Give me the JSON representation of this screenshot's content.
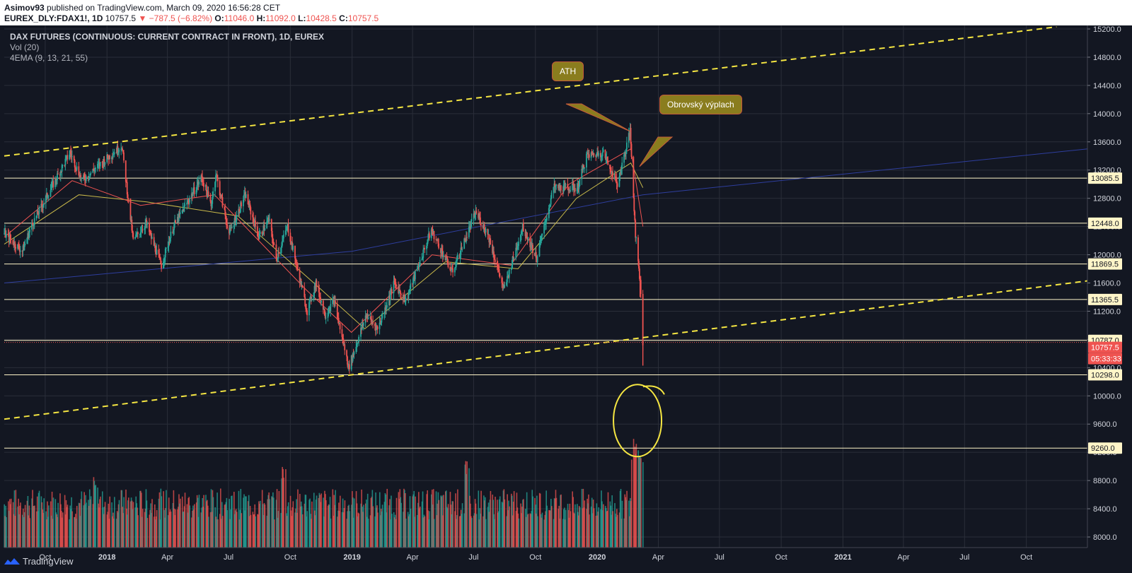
{
  "header": {
    "publisher": "Asimov93",
    "published_text": "published on TradingView.com, March 09, 2020 16:56:28 CET",
    "symbol": "EUREX_DLY:FDAX1!, 1D",
    "last": "10757.5",
    "change": "▼ −787.5 (−6.82%)",
    "o_label": "O:",
    "o_value": "11046.0",
    "h_label": "H:",
    "h_value": "11092.0",
    "l_label": "L:",
    "l_value": "10428.5",
    "c_label": "C:",
    "c_value": "10757.5"
  },
  "legend": {
    "title": "DAX FUTURES (CONTINUOUS: CURRENT CONTRACT IN FRONT), 1D, EUREX",
    "vol": "Vol (20)",
    "ema": "4EMA (9, 13, 21, 55)"
  },
  "annotations": {
    "ath": "ATH",
    "flush": "Obrovský výplach"
  },
  "footer": {
    "brand": "TradingView"
  },
  "colors": {
    "background": "#131722",
    "grid": "#2a2e39",
    "up": "#26a69a",
    "down": "#ef5350",
    "level_line": "#fff5c8",
    "trendline": "#f5e642",
    "callout_bg": "#8a7d1e",
    "callout_border": "#c55a3a",
    "ema9": "#ef5350",
    "ema21": "#c9b94a",
    "ema55": "#2e3e9e"
  },
  "chart_data": {
    "type": "candlestick",
    "ylim": [
      7850,
      15250
    ],
    "x_range": [
      "2017-08-01",
      "2021-12-31"
    ],
    "x_ticks": [
      {
        "label": "Oct",
        "date": "2017-10-01",
        "bold": false
      },
      {
        "label": "2018",
        "date": "2018-01-01",
        "bold": true
      },
      {
        "label": "Apr",
        "date": "2018-04-01",
        "bold": false
      },
      {
        "label": "Jul",
        "date": "2018-07-01",
        "bold": false
      },
      {
        "label": "Oct",
        "date": "2018-10-01",
        "bold": false
      },
      {
        "label": "2019",
        "date": "2019-01-01",
        "bold": true
      },
      {
        "label": "Apr",
        "date": "2019-04-01",
        "bold": false
      },
      {
        "label": "Jul",
        "date": "2019-07-01",
        "bold": false
      },
      {
        "label": "Oct",
        "date": "2019-10-01",
        "bold": false
      },
      {
        "label": "2020",
        "date": "2020-01-01",
        "bold": true
      },
      {
        "label": "Apr",
        "date": "2020-04-01",
        "bold": false
      },
      {
        "label": "Jul",
        "date": "2020-07-01",
        "bold": false
      },
      {
        "label": "Oct",
        "date": "2020-10-01",
        "bold": false
      },
      {
        "label": "2021",
        "date": "2021-01-01",
        "bold": true
      },
      {
        "label": "Apr",
        "date": "2021-04-01",
        "bold": false
      },
      {
        "label": "Jul",
        "date": "2021-07-01",
        "bold": false
      },
      {
        "label": "Oct",
        "date": "2021-10-01",
        "bold": false
      }
    ],
    "y_ticks": [
      "15200.0",
      "14800.0",
      "14400.0",
      "14000.0",
      "13600.0",
      "13200.0",
      "12800.0",
      "12400.0",
      "12000.0",
      "11600.0",
      "11200.0",
      "10800.0",
      "10400.0",
      "10000.0",
      "9600.0",
      "9200.0",
      "8800.0",
      "8400.0",
      "8000.0"
    ],
    "levels": [
      {
        "value": 13085.5,
        "label": "13085.5"
      },
      {
        "value": 12448.0,
        "label": "12448.0"
      },
      {
        "value": 11869.5,
        "label": "11869.5"
      },
      {
        "value": 11365.5,
        "label": "11365.5"
      },
      {
        "value": 10787.0,
        "label": "10787.0"
      },
      {
        "value": 10298.0,
        "label": "10298.0"
      },
      {
        "value": 9260.0,
        "label": "9260.0"
      }
    ],
    "last_price": {
      "value": 10757.5,
      "label": "10757.5",
      "countdown": "05:33:33"
    },
    "trendlines": [
      {
        "from": {
          "date": "2017-08-01",
          "value": 13400
        },
        "to": {
          "date": "2021-11-15",
          "value": 15230
        }
      },
      {
        "from": {
          "date": "2017-08-01",
          "value": 9670
        },
        "to": {
          "date": "2021-12-31",
          "value": 11630
        }
      }
    ],
    "ohlc_path": [
      [
        "2017-08-01",
        12300
      ],
      [
        "2017-08-28",
        12050
      ],
      [
        "2017-09-10",
        12400
      ],
      [
        "2017-10-10",
        12950
      ],
      [
        "2017-11-07",
        13450
      ],
      [
        "2017-11-25",
        13050
      ],
      [
        "2017-12-12",
        13200
      ],
      [
        "2018-01-23",
        13550
      ],
      [
        "2018-02-09",
        12200
      ],
      [
        "2018-02-28",
        12450
      ],
      [
        "2018-03-23",
        11850
      ],
      [
        "2018-04-10",
        12400
      ],
      [
        "2018-05-22",
        13100
      ],
      [
        "2018-06-05",
        12700
      ],
      [
        "2018-06-12",
        13150
      ],
      [
        "2018-07-02",
        12300
      ],
      [
        "2018-07-26",
        12850
      ],
      [
        "2018-08-15",
        12250
      ],
      [
        "2018-08-30",
        12500
      ],
      [
        "2018-09-10",
        11950
      ],
      [
        "2018-09-27",
        12400
      ],
      [
        "2018-10-26",
        11200
      ],
      [
        "2018-11-08",
        11600
      ],
      [
        "2018-11-22",
        11150
      ],
      [
        "2018-12-05",
        11350
      ],
      [
        "2018-12-27",
        10400
      ],
      [
        "2019-01-22",
        11150
      ],
      [
        "2019-02-08",
        10950
      ],
      [
        "2019-03-05",
        11600
      ],
      [
        "2019-03-22",
        11350
      ],
      [
        "2019-04-29",
        12350
      ],
      [
        "2019-05-30",
        11750
      ],
      [
        "2019-07-04",
        12600
      ],
      [
        "2019-07-22",
        12300
      ],
      [
        "2019-08-15",
        11500
      ],
      [
        "2019-09-12",
        12400
      ],
      [
        "2019-10-03",
        11950
      ],
      [
        "2019-10-28",
        12950
      ],
      [
        "2019-12-03",
        12950
      ],
      [
        "2019-12-16",
        13400
      ],
      [
        "2020-01-10",
        13450
      ],
      [
        "2020-01-31",
        13000
      ],
      [
        "2020-02-19",
        13750
      ],
      [
        "2020-02-27",
        12300
      ],
      [
        "2020-03-02",
        11900
      ],
      [
        "2020-03-06",
        11500
      ],
      [
        "2020-03-09",
        10757.5
      ]
    ],
    "ema_fast": [
      [
        "2017-08-01",
        12250
      ],
      [
        "2017-11-10",
        13050
      ],
      [
        "2018-02-20",
        12700
      ],
      [
        "2018-06-10",
        12850
      ],
      [
        "2018-10-25",
        11500
      ],
      [
        "2018-12-31",
        10900
      ],
      [
        "2019-04-30",
        12000
      ],
      [
        "2019-08-25",
        11850
      ],
      [
        "2019-11-20",
        13000
      ],
      [
        "2020-02-20",
        13500
      ],
      [
        "2020-03-09",
        12400
      ]
    ],
    "ema_slow": [
      [
        "2017-08-01",
        12150
      ],
      [
        "2017-11-20",
        12850
      ],
      [
        "2018-03-01",
        12750
      ],
      [
        "2018-07-15",
        12550
      ],
      [
        "2018-11-05",
        11600
      ],
      [
        "2019-01-20",
        10950
      ],
      [
        "2019-05-20",
        11900
      ],
      [
        "2019-09-05",
        11800
      ],
      [
        "2019-12-01",
        12800
      ],
      [
        "2020-02-20",
        13300
      ],
      [
        "2020-03-09",
        12950
      ]
    ],
    "ema_blue": [
      [
        "2017-08-01",
        11600
      ],
      [
        "2019-01-01",
        12050
      ],
      [
        "2020-03-09",
        12850
      ],
      [
        "2021-12-31",
        13500
      ]
    ],
    "volume": {
      "range": [
        0,
        2000000
      ],
      "start": "2017-08-01",
      "end": "2020-03-09",
      "spikes": [
        [
          "2020-02-24",
          1.6
        ],
        [
          "2020-02-27",
          1.75
        ],
        [
          "2020-03-02",
          1.8
        ],
        [
          "2020-03-06",
          1.5
        ],
        [
          "2019-06-21",
          1.4
        ],
        [
          "2018-09-21",
          1.35
        ],
        [
          "2017-12-15",
          1.2
        ]
      ]
    },
    "drawings": {
      "ath_pointer": {
        "date": "2020-02-19",
        "value": 13750
      },
      "flush_pointer": {
        "date": "2020-03-04",
        "value": 13250
      },
      "volume_circle": {
        "date": "2020-03-01",
        "value": 9650
      },
      "circle_tail": {
        "date": "2020-04-10",
        "value": 10020
      }
    }
  }
}
